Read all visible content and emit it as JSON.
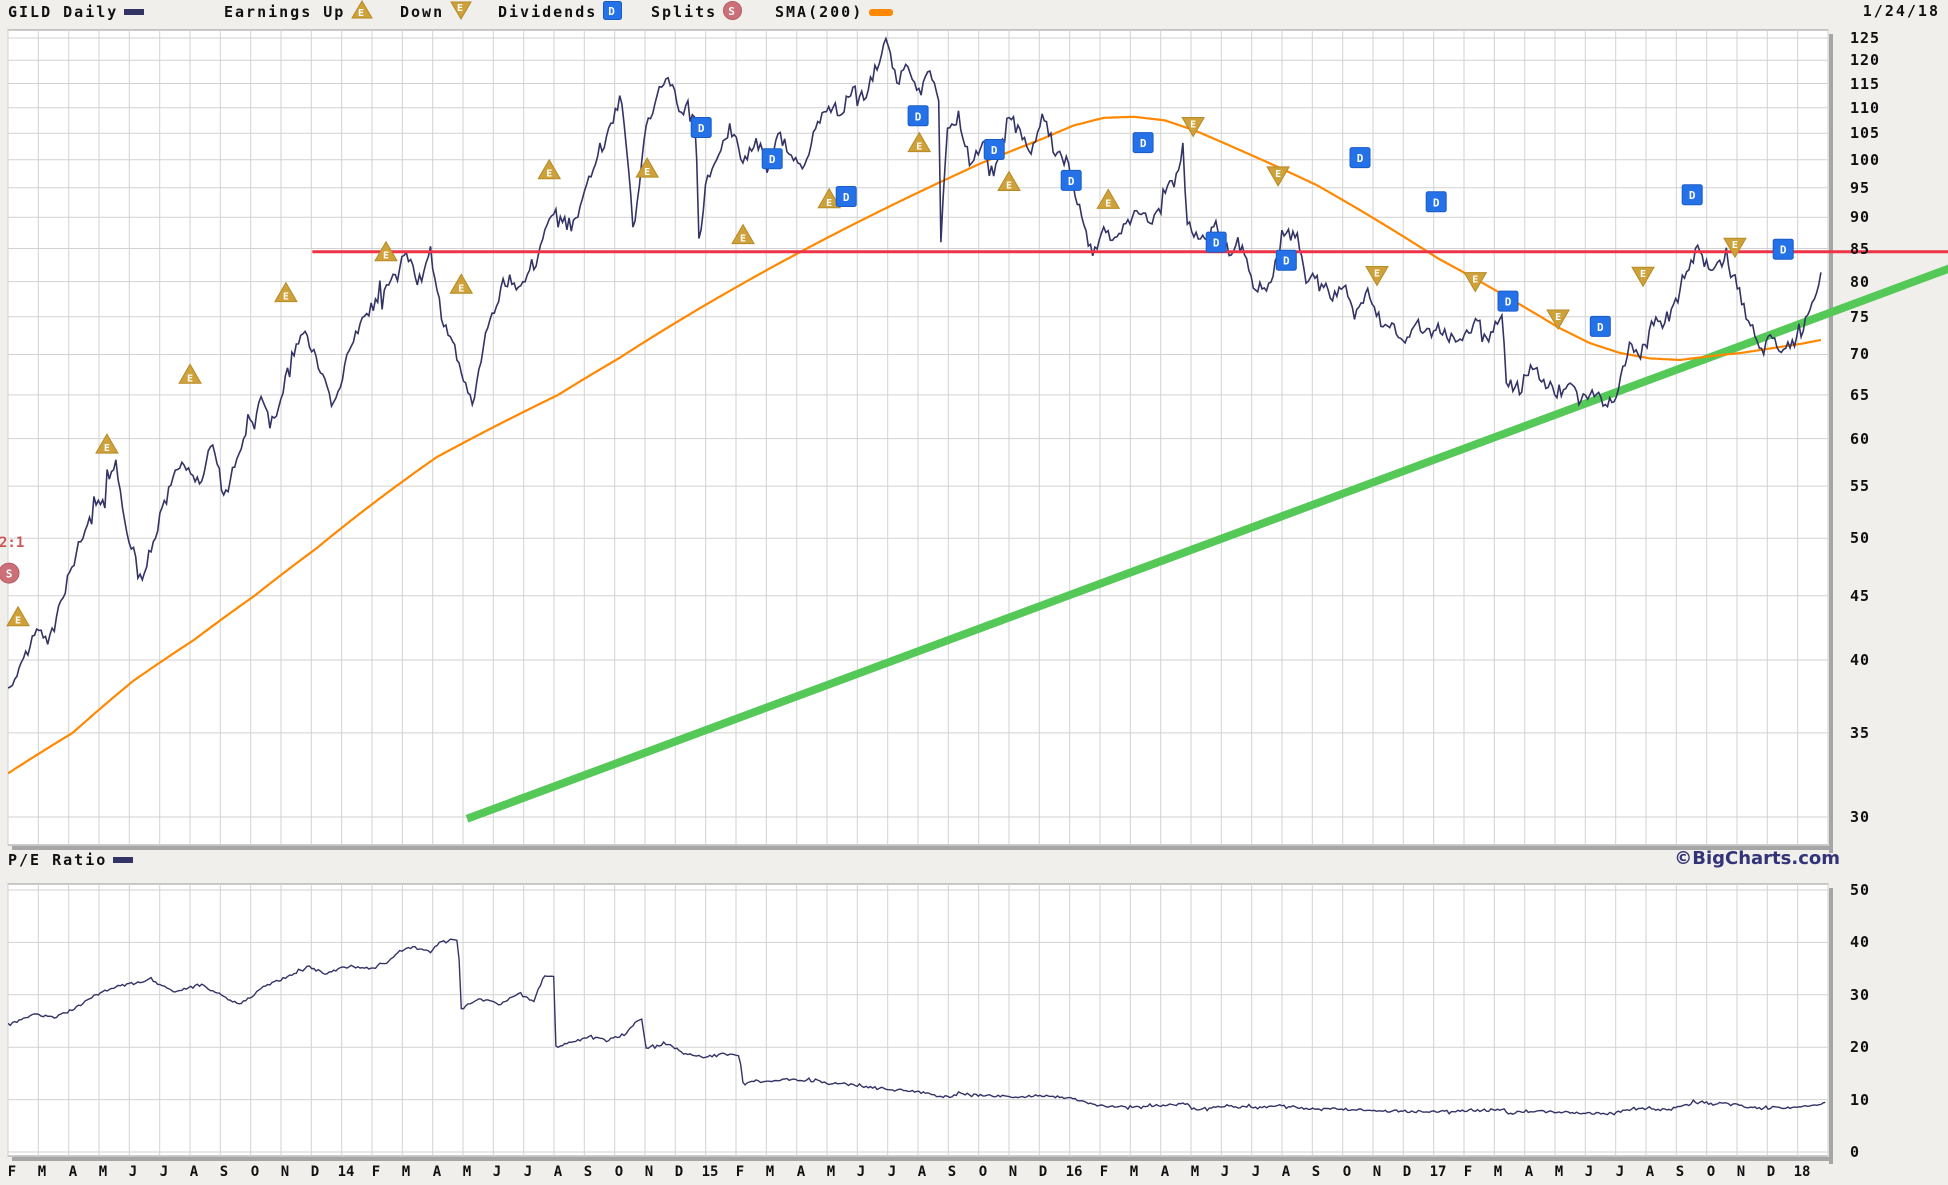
{
  "header": {
    "title": "GILD Daily",
    "date": "1/24/18",
    "legend": [
      {
        "id": "earnings-up",
        "label": "Earnings Up",
        "x": 224
      },
      {
        "id": "earnings-down",
        "label": "Down",
        "x": 400
      },
      {
        "id": "dividends",
        "label": "Dividends",
        "x": 498
      },
      {
        "id": "splits",
        "label": "Splits",
        "x": 651
      },
      {
        "id": "sma",
        "label": "SMA(200)",
        "x": 775
      }
    ]
  },
  "pe_title": "P/E Ratio",
  "watermark": "©BigCharts.com",
  "split_annotation": {
    "label": "2:1",
    "month": -0.1,
    "price": 49.2
  },
  "axes": {
    "price_ticks": [
      125,
      120,
      115,
      110,
      105,
      100,
      95,
      90,
      85,
      80,
      75,
      70,
      65,
      60,
      55,
      50,
      45,
      40,
      35,
      30
    ],
    "pe_ticks": [
      50,
      40,
      30,
      20,
      10,
      0
    ],
    "months": [
      "F",
      "M",
      "A",
      "M",
      "J",
      "J",
      "A",
      "S",
      "O",
      "N",
      "D",
      "14",
      "F",
      "M",
      "A",
      "M",
      "J",
      "J",
      "A",
      "S",
      "O",
      "N",
      "D",
      "15",
      "F",
      "M",
      "A",
      "M",
      "J",
      "J",
      "A",
      "S",
      "O",
      "N",
      "D",
      "16",
      "F",
      "M",
      "A",
      "M",
      "J",
      "J",
      "A",
      "S",
      "O",
      "N",
      "D",
      "17",
      "F",
      "M",
      "A",
      "M",
      "J",
      "J",
      "A",
      "S",
      "O",
      "N",
      "D",
      "18"
    ]
  },
  "colors": {
    "price": "#333366",
    "sma": "#ff8800",
    "resistance": "#ee3347",
    "support": "#55c957",
    "grid": "#d2d2d2",
    "border": "#999999",
    "shadow": "#a6a6a6",
    "plot_bg": "#ffffff",
    "page_bg": "#f0efec",
    "earnings_fill": "#cfa13a",
    "earnings_stroke": "#b68a25",
    "dividend_fill": "#2471e8",
    "dividend_stroke": "#1b5cc4",
    "split_fill": "#cc7078",
    "split_stroke": "#b85c66",
    "watermark": "#333377",
    "split_text": "#cc5555"
  },
  "chart_data": [
    {
      "type": "line",
      "name": "GILD price",
      "scale": "log",
      "ylim": [
        30,
        125
      ],
      "noise": 0.011,
      "seed": 7,
      "series_anchors": [
        [
          -0.13,
          37.8
        ],
        [
          0.4,
          40
        ],
        [
          0.8,
          42.5
        ],
        [
          1.2,
          41.5
        ],
        [
          1.8,
          46
        ],
        [
          2.4,
          51
        ],
        [
          3.0,
          54
        ],
        [
          3.4,
          57
        ],
        [
          3.8,
          50.5
        ],
        [
          4.3,
          46.5
        ],
        [
          5.0,
          53
        ],
        [
          5.6,
          58
        ],
        [
          6.2,
          55
        ],
        [
          6.6,
          59.5
        ],
        [
          7.0,
          53.5
        ],
        [
          7.6,
          60
        ],
        [
          8.2,
          64.5
        ],
        [
          8.6,
          62
        ],
        [
          9.2,
          69
        ],
        [
          9.6,
          73
        ],
        [
          10.2,
          68
        ],
        [
          10.6,
          63.5
        ],
        [
          11.0,
          69
        ],
        [
          11.5,
          74.5
        ],
        [
          12.0,
          77
        ],
        [
          12.5,
          80.5
        ],
        [
          13.0,
          84
        ],
        [
          13.4,
          80
        ],
        [
          13.8,
          84.5
        ],
        [
          14.2,
          74
        ],
        [
          14.6,
          70.5
        ],
        [
          15.0,
          66
        ],
        [
          15.2,
          63.8
        ],
        [
          15.6,
          72
        ],
        [
          16.0,
          77.5
        ],
        [
          16.4,
          80.5
        ],
        [
          16.8,
          79
        ],
        [
          17.2,
          82.5
        ],
        [
          17.6,
          89
        ],
        [
          18.0,
          91.5
        ],
        [
          18.4,
          87.5
        ],
        [
          18.8,
          93
        ],
        [
          19.0,
          96
        ],
        [
          19.4,
          103
        ],
        [
          19.8,
          108
        ],
        [
          20.1,
          110.5
        ],
        [
          20.5,
          87.5
        ],
        [
          20.9,
          106
        ],
        [
          21.3,
          113
        ],
        [
          21.6,
          116.5
        ],
        [
          22.0,
          110
        ],
        [
          22.4,
          108
        ],
        [
          22.55,
          107
        ],
        [
          22.62,
          85.5
        ],
        [
          22.9,
          95
        ],
        [
          23.3,
          101
        ],
        [
          23.7,
          106.5
        ],
        [
          24.1,
          99.5
        ],
        [
          24.5,
          104
        ],
        [
          24.9,
          98.5
        ],
        [
          25.3,
          104.5
        ],
        [
          25.7,
          100
        ],
        [
          26.1,
          98
        ],
        [
          26.5,
          106
        ],
        [
          26.9,
          111
        ],
        [
          27.3,
          108
        ],
        [
          27.7,
          114.5
        ],
        [
          28.1,
          112
        ],
        [
          28.5,
          118.5
        ],
        [
          28.8,
          124.5
        ],
        [
          29.2,
          115.5
        ],
        [
          29.5,
          119.5
        ],
        [
          29.9,
          113
        ],
        [
          30.3,
          117.5
        ],
        [
          30.55,
          112
        ],
        [
          30.62,
          86.5
        ],
        [
          30.8,
          104.5
        ],
        [
          31.2,
          108.5
        ],
        [
          31.6,
          99
        ],
        [
          32.0,
          103.5
        ],
        [
          32.4,
          97.5
        ],
        [
          32.8,
          108
        ],
        [
          33.2,
          105.5
        ],
        [
          33.6,
          101
        ],
        [
          34.0,
          108.5
        ],
        [
          34.4,
          101.5
        ],
        [
          34.8,
          99
        ],
        [
          35.2,
          91.5
        ],
        [
          35.6,
          84
        ],
        [
          36.0,
          88
        ],
        [
          36.4,
          86
        ],
        [
          36.8,
          89.5
        ],
        [
          37.2,
          91.5
        ],
        [
          37.6,
          89
        ],
        [
          38.0,
          94.5
        ],
        [
          38.4,
          97.5
        ],
        [
          38.6,
          101
        ],
        [
          38.75,
          88.5
        ],
        [
          39.3,
          86
        ],
        [
          39.7,
          88.5
        ],
        [
          40.1,
          84.5
        ],
        [
          40.5,
          86.5
        ],
        [
          40.9,
          79.5
        ],
        [
          41.3,
          78.5
        ],
        [
          41.7,
          83
        ],
        [
          42.0,
          87.5
        ],
        [
          42.4,
          86.5
        ],
        [
          42.65,
          79.5
        ],
        [
          43.1,
          80.5
        ],
        [
          43.5,
          77.5
        ],
        [
          43.9,
          79.5
        ],
        [
          44.3,
          75.5
        ],
        [
          44.7,
          78.5
        ],
        [
          45.1,
          74.5
        ],
        [
          45.5,
          73.5
        ],
        [
          45.9,
          71.5
        ],
        [
          46.3,
          74.5
        ],
        [
          46.7,
          72.5
        ],
        [
          47.1,
          73.5
        ],
        [
          47.5,
          71.8
        ],
        [
          47.9,
          72.5
        ],
        [
          48.3,
          74.5
        ],
        [
          48.7,
          72
        ],
        [
          49.1,
          75.5
        ],
        [
          49.25,
          66.5
        ],
        [
          49.7,
          65.5
        ],
        [
          50.1,
          68.5
        ],
        [
          50.5,
          67
        ],
        [
          50.9,
          65
        ],
        [
          51.3,
          66.5
        ],
        [
          51.7,
          64.2
        ],
        [
          52.1,
          65.5
        ],
        [
          52.5,
          63.8
        ],
        [
          52.9,
          65
        ],
        [
          53.3,
          71
        ],
        [
          53.7,
          70
        ],
        [
          54.1,
          74.5
        ],
        [
          54.5,
          73.5
        ],
        [
          54.9,
          77.5
        ],
        [
          55.3,
          83.5
        ],
        [
          55.6,
          85.8
        ],
        [
          56.0,
          81
        ],
        [
          56.4,
          83
        ],
        [
          56.8,
          80.5
        ],
        [
          57.2,
          75
        ],
        [
          57.6,
          70.5
        ],
        [
          58.0,
          72
        ],
        [
          58.4,
          70.5
        ],
        [
          58.8,
          71.5
        ],
        [
          59.2,
          74.5
        ],
        [
          59.45,
          78.5
        ],
        [
          59.65,
          81.0
        ]
      ]
    },
    {
      "type": "line",
      "name": "SMA(200)",
      "scale": "log",
      "ylim": [
        30,
        125
      ],
      "noise": 0,
      "seed": 3,
      "series_anchors": [
        [
          -0.13,
          32.5
        ],
        [
          2,
          35
        ],
        [
          4,
          38.5
        ],
        [
          6,
          41.5
        ],
        [
          8,
          45
        ],
        [
          10,
          49
        ],
        [
          12,
          53.5
        ],
        [
          14,
          58
        ],
        [
          16,
          61.5
        ],
        [
          18,
          65
        ],
        [
          20,
          69.5
        ],
        [
          22,
          74.5
        ],
        [
          24,
          79.5
        ],
        [
          26,
          84.5
        ],
        [
          28,
          89.5
        ],
        [
          30,
          94.5
        ],
        [
          32,
          99.5
        ],
        [
          34,
          104
        ],
        [
          35,
          106.5
        ],
        [
          36,
          108
        ],
        [
          37,
          108.2
        ],
        [
          38,
          107.5
        ],
        [
          39,
          105.5
        ],
        [
          40,
          103
        ],
        [
          41,
          100.5
        ],
        [
          42,
          98
        ],
        [
          43,
          95.5
        ],
        [
          44,
          92.5
        ],
        [
          45,
          89.5
        ],
        [
          46,
          86.5
        ],
        [
          47,
          83.5
        ],
        [
          48,
          81
        ],
        [
          49,
          78.5
        ],
        [
          50,
          76
        ],
        [
          51,
          73.5
        ],
        [
          52,
          71.5
        ],
        [
          53,
          70.2
        ],
        [
          54,
          69.5
        ],
        [
          55,
          69.3
        ],
        [
          56,
          69.8
        ],
        [
          57,
          70.2
        ],
        [
          58,
          70.8
        ],
        [
          59,
          71.4
        ],
        [
          59.65,
          71.9
        ]
      ]
    },
    {
      "type": "line",
      "name": "P/E Ratio",
      "scale": "linear",
      "ylim": [
        0,
        50
      ],
      "noise": 0.22,
      "seed": 13,
      "series_anchors": [
        [
          -0.13,
          24.4
        ],
        [
          0.7,
          26.3
        ],
        [
          1.4,
          25.7
        ],
        [
          2.1,
          27.5
        ],
        [
          2.7,
          29.8
        ],
        [
          3.4,
          31.5
        ],
        [
          4.2,
          32.4
        ],
        [
          4.5,
          33
        ],
        [
          5.4,
          30.5
        ],
        [
          6.2,
          32
        ],
        [
          7.0,
          29.5
        ],
        [
          7.5,
          28.2
        ],
        [
          8.3,
          31.5
        ],
        [
          8.9,
          33
        ],
        [
          9.8,
          35.3
        ],
        [
          10.3,
          34
        ],
        [
          11.1,
          35.5
        ],
        [
          11.9,
          34.9
        ],
        [
          12.4,
          36.5
        ],
        [
          12.8,
          38.4
        ],
        [
          13.3,
          39.3
        ],
        [
          13.8,
          38.2
        ],
        [
          14.1,
          40.3
        ],
        [
          14.72,
          40.6
        ],
        [
          14.78,
          27.3
        ],
        [
          15.4,
          29.2
        ],
        [
          16.1,
          28.2
        ],
        [
          16.7,
          30.2
        ],
        [
          17.2,
          28.8
        ],
        [
          17.5,
          33.4
        ],
        [
          17.86,
          33.4
        ],
        [
          17.92,
          20.0
        ],
        [
          18.5,
          21
        ],
        [
          19.1,
          22.1
        ],
        [
          19.6,
          21.2
        ],
        [
          20.2,
          22.5
        ],
        [
          20.8,
          25.8
        ],
        [
          20.86,
          20.0
        ],
        [
          21.6,
          20.6
        ],
        [
          22.2,
          18.7
        ],
        [
          22.8,
          18.1
        ],
        [
          23.4,
          18.7
        ],
        [
          24.0,
          18.3
        ],
        [
          24.08,
          13.2
        ],
        [
          24.9,
          13.5
        ],
        [
          25.7,
          13.9
        ],
        [
          26.5,
          13.4
        ],
        [
          27.4,
          13.0
        ],
        [
          28.2,
          12.4
        ],
        [
          29.0,
          12.0
        ],
        [
          29.8,
          11.6
        ],
        [
          30.7,
          10.5
        ],
        [
          31.3,
          11.1
        ],
        [
          32,
          10.8
        ],
        [
          33,
          10.5
        ],
        [
          34,
          10.8
        ],
        [
          35,
          10.2
        ],
        [
          35.5,
          9.2
        ],
        [
          36,
          8.8
        ],
        [
          37,
          8.6
        ],
        [
          38,
          8.9
        ],
        [
          38.8,
          9.2
        ],
        [
          38.9,
          8.2
        ],
        [
          39.5,
          8.4
        ],
        [
          40,
          8.8
        ],
        [
          41,
          8.4
        ],
        [
          42,
          8.8
        ],
        [
          42.7,
          8.2
        ],
        [
          43.5,
          8.3
        ],
        [
          44.5,
          8.0
        ],
        [
          45.5,
          7.8
        ],
        [
          46.5,
          7.7
        ],
        [
          47.5,
          7.8
        ],
        [
          48.5,
          7.9
        ],
        [
          49.2,
          8.1
        ],
        [
          49.35,
          7.4
        ],
        [
          50,
          7.8
        ],
        [
          51,
          7.6
        ],
        [
          52,
          7.4
        ],
        [
          52.6,
          7.3
        ],
        [
          53.2,
          7.9
        ],
        [
          54,
          8.4
        ],
        [
          54.6,
          8.2
        ],
        [
          55,
          8.6
        ],
        [
          55.7,
          9.6
        ],
        [
          56.1,
          9.1
        ],
        [
          56.5,
          9.3
        ],
        [
          57.1,
          8.7
        ],
        [
          57.7,
          8.2
        ],
        [
          58.2,
          8.5
        ],
        [
          58.7,
          8.4
        ],
        [
          59.3,
          8.8
        ],
        [
          59.7,
          9.4
        ],
        [
          59.9,
          9.7
        ]
      ]
    }
  ],
  "trendlines": {
    "resistance": {
      "price": 84.5,
      "m1": 9.9,
      "m2": 63.9
    },
    "support": {
      "m1": 15.0,
      "p1": 29.9,
      "m2": 63.9,
      "p2": 82.0
    }
  },
  "markers": {
    "earnings_up": [
      [
        0.2,
        43.3
      ],
      [
        3.13,
        59.4
      ],
      [
        5.87,
        67.5
      ],
      [
        9.03,
        78.4
      ],
      [
        12.33,
        84.5
      ],
      [
        14.81,
        79.6
      ],
      [
        17.71,
        98.2
      ],
      [
        20.94,
        98.5
      ],
      [
        24.1,
        87.2
      ],
      [
        26.94,
        93.1
      ],
      [
        29.91,
        103.2
      ],
      [
        32.87,
        96.1
      ],
      [
        36.14,
        93.0
      ]
    ],
    "earnings_down": [
      [
        38.94,
        106.3
      ],
      [
        41.74,
        97.1
      ],
      [
        45.0,
        80.9
      ],
      [
        48.24,
        80.0
      ],
      [
        50.97,
        74.7
      ],
      [
        53.77,
        80.8
      ],
      [
        56.8,
        85.2
      ]
    ],
    "dividends": [
      [
        22.72,
        106.1
      ],
      [
        25.06,
        100.2
      ],
      [
        27.5,
        93.5
      ],
      [
        29.87,
        108.4
      ],
      [
        32.38,
        101.9
      ],
      [
        34.92,
        96.3
      ],
      [
        37.29,
        103.2
      ],
      [
        39.7,
        86.0
      ],
      [
        42.01,
        83.2
      ],
      [
        44.44,
        100.4
      ],
      [
        46.95,
        92.6
      ],
      [
        49.32,
        77.2
      ],
      [
        52.36,
        73.7
      ],
      [
        55.39,
        93.8
      ],
      [
        58.39,
        84.9
      ]
    ],
    "splits": [
      [
        -0.1,
        46.9
      ]
    ]
  }
}
